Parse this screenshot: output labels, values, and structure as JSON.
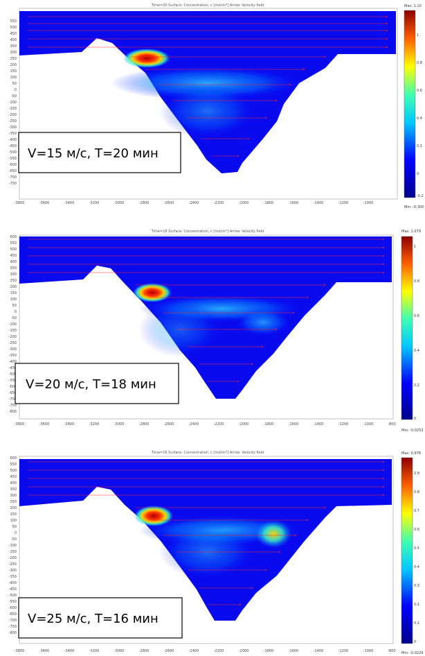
{
  "chart_data": [
    {
      "type": "heatmap",
      "title": "Time=20   Surface: Concentration, c [mol/m³]   Arrow: Velocity field",
      "label": "V=15 м/с, T=20 мин",
      "max_label": "Max: 1.10",
      "min_label": "Min: -0.300",
      "x_ticks": [
        "-3800",
        "-3600",
        "-3400",
        "-3200",
        "-3000",
        "-2800",
        "-2600",
        "-2400",
        "-2200",
        "-2000",
        "-1800",
        "-1600",
        "-1400",
        "-1200",
        "-1000"
      ],
      "y_ticks": [
        "550",
        "500",
        "450",
        "400",
        "350",
        "300",
        "250",
        "200",
        "150",
        "100",
        "50",
        "0",
        "-50",
        "-100",
        "-150",
        "-200",
        "-250",
        "-300",
        "-350",
        "-400",
        "-450",
        "-500",
        "-550",
        "-600",
        "-650",
        "-700",
        "-750"
      ],
      "colorbar_ticks": [
        "1",
        "0.8",
        "0.6",
        "0.4",
        "0.2",
        "0",
        "-0.2"
      ],
      "xlim": [
        -3800,
        -800
      ],
      "ylim": [
        -800,
        600
      ]
    },
    {
      "type": "heatmap",
      "title": "Time=18   Surface: Concentration, c [mol/m³]   Arrow: Velocity field",
      "label": "V=20 м/с, T=18 мин",
      "max_label": "Max: 1.079",
      "min_label": "Min: -0.0253",
      "x_ticks": [
        "-3800",
        "-3600",
        "-3400",
        "-3200",
        "-3000",
        "-2800",
        "-2600",
        "-2400",
        "-2200",
        "-2000",
        "-1800",
        "-1600",
        "-1400",
        "-1200",
        "-1000",
        "-800"
      ],
      "y_ticks": [
        "600",
        "550",
        "500",
        "450",
        "400",
        "350",
        "300",
        "250",
        "200",
        "150",
        "100",
        "50",
        "0",
        "-50",
        "-100",
        "-150",
        "-200",
        "-250",
        "-300",
        "-350",
        "-400",
        "-450",
        "-500",
        "-550",
        "-600",
        "-650",
        "-700",
        "-750",
        "-800"
      ],
      "colorbar_ticks": [
        "1",
        "0.8",
        "0.6",
        "0.4",
        "0.2",
        "0"
      ],
      "xlim": [
        -3800,
        -800
      ],
      "ylim": [
        -800,
        600
      ]
    },
    {
      "type": "heatmap",
      "title": "Time=16   Surface: Concentration, c [mol/m³]   Arrow: Velocity field",
      "label": "V=25 м/с, T=16 мин",
      "max_label": "Max: 0.978",
      "min_label": "Min: -0.0229",
      "x_ticks": [
        "-3800",
        "-3600",
        "-3400",
        "-3200",
        "-3000",
        "-2800",
        "-2600",
        "-2400",
        "-2200",
        "-2000",
        "-1800",
        "-1600",
        "-1400",
        "-1200",
        "-1000",
        "-800"
      ],
      "y_ticks": [
        "600",
        "550",
        "500",
        "450",
        "400",
        "350",
        "300",
        "250",
        "200",
        "150",
        "100",
        "50",
        "0",
        "-50",
        "-100",
        "-150",
        "-200",
        "-250",
        "-300",
        "-350",
        "-400",
        "-450",
        "-500",
        "-550",
        "-600",
        "-650",
        "-700",
        "-750",
        "-800"
      ],
      "colorbar_ticks": [
        "0.9",
        "0.8",
        "0.7",
        "0.6",
        "0.5",
        "0.4",
        "0.3",
        "0.2",
        "0.1",
        "0"
      ],
      "xlim": [
        -3800,
        -800
      ],
      "ylim": [
        -800,
        600
      ]
    }
  ]
}
